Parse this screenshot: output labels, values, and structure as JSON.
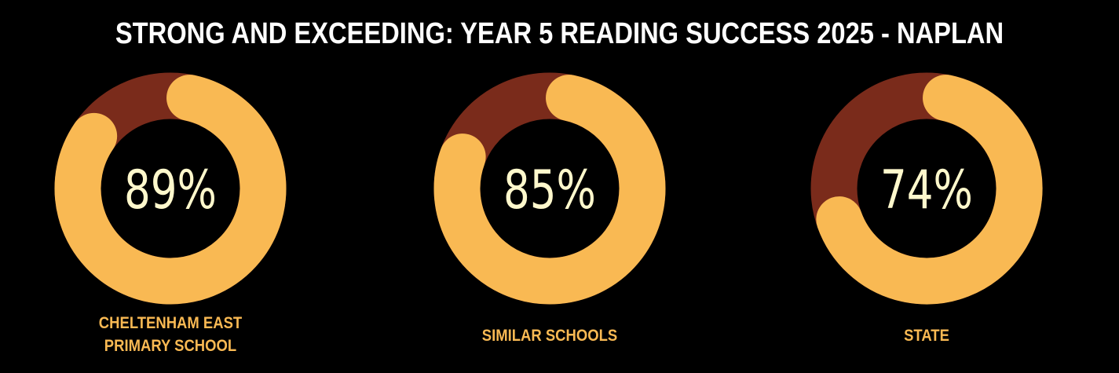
{
  "chart_data": {
    "type": "donut",
    "title": "STRONG AND EXCEEDING: YEAR 5 READING SUCCESS 2025 - NAPLAN",
    "unit": "%",
    "items": [
      {
        "label_lines": [
          "CHELTENHAM EAST",
          "PRIMARY SCHOOL"
        ],
        "value": 89,
        "display": "89%"
      },
      {
        "label_lines": [
          "SIMILAR SCHOOLS"
        ],
        "value": 85,
        "display": "85%"
      },
      {
        "label_lines": [
          "STATE"
        ],
        "value": 74,
        "display": "74%"
      }
    ],
    "colors": {
      "filled": "#F9B953",
      "remaining": "#7A2B1B",
      "value_text": "#FFF8CC",
      "label_text": "#F9B953",
      "background": "#000000"
    }
  }
}
